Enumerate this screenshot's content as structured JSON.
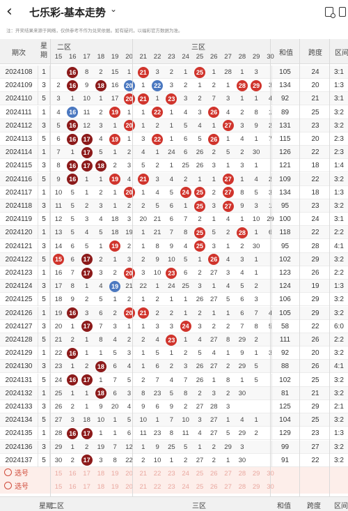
{
  "header": {
    "back_icon": "back-arrow-icon",
    "title": "七乐彩-基本走势",
    "title_chevron": "chevron-down-icon",
    "share_icon": "share-icon",
    "menu_icon": "menu-icon"
  },
  "notice": "注：开奖结果来源于网络，仅供参考不作为兑奖依据。如有疑问，以福彩官方数据为准。",
  "columns": {
    "period": "期次",
    "week": "星期",
    "zone2": "二区",
    "zone3": "三区",
    "sum": "和值",
    "span": "跨度",
    "ratio": "区间"
  },
  "numbers": [
    15,
    16,
    17,
    18,
    19,
    20,
    21,
    22,
    23,
    24,
    25,
    26,
    27,
    28,
    29,
    30
  ],
  "rows": [
    {
      "period": "2024108",
      "week": "1",
      "cells": [
        "",
        "16",
        "8",
        "2",
        "15",
        "1",
        "21",
        "3",
        "2",
        "1",
        "25",
        "1",
        "28",
        "1",
        "3"
      ],
      "sum": "105",
      "span": "24",
      "ratio": "3:1"
    },
    {
      "period": "2024109",
      "week": "3",
      "cells": [
        "2",
        "16",
        "9",
        "18",
        "16",
        "20",
        "1",
        "22",
        "3",
        "2",
        "1",
        "2",
        "1",
        "28",
        "29",
        "3"
      ],
      "sum": "134",
      "span": "20",
      "ratio": "1:3"
    },
    {
      "period": "2024110",
      "week": "5",
      "cells": [
        "3",
        "1",
        "10",
        "1",
        "17",
        "20",
        "21",
        "1",
        "23",
        "3",
        "2",
        "7",
        "3",
        "1",
        "1",
        "4"
      ],
      "sum": "92",
      "span": "21",
      "ratio": "3:1"
    },
    {
      "period": "2024111",
      "week": "1",
      "cells": [
        "4",
        "16",
        "11",
        "2",
        "19",
        "1",
        "1",
        "22",
        "1",
        "4",
        "3",
        "26",
        "4",
        "2",
        "8",
        "1"
      ],
      "sum": "89",
      "span": "25",
      "ratio": "3:2"
    },
    {
      "period": "2024112",
      "week": "3",
      "cells": [
        "5",
        "16",
        "12",
        "3",
        "1",
        "20",
        "1",
        "2",
        "1",
        "5",
        "4",
        "1",
        "27",
        "3",
        "9",
        "2"
      ],
      "sum": "131",
      "span": "23",
      "ratio": "3:2"
    },
    {
      "period": "2024113",
      "week": "5",
      "cells": [
        "6",
        "16",
        "17",
        "4",
        "19",
        "1",
        "3",
        "22",
        "1",
        "6",
        "5",
        "26",
        "1",
        "4",
        "1",
        "7"
      ],
      "sum": "115",
      "span": "20",
      "ratio": "2:3"
    },
    {
      "period": "2024114",
      "week": "1",
      "cells": [
        "7",
        "1",
        "17",
        "5",
        "1",
        "2",
        "4",
        "1",
        "24",
        "6",
        "26",
        "2",
        "5",
        "2",
        "30"
      ],
      "sum": "126",
      "span": "22",
      "ratio": "2:3"
    },
    {
      "period": "2024115",
      "week": "3",
      "cells": [
        "8",
        "16",
        "17",
        "18",
        "2",
        "3",
        "5",
        "2",
        "1",
        "25",
        "26",
        "3",
        "1",
        "3",
        "1"
      ],
      "sum": "121",
      "span": "18",
      "ratio": "1:4"
    },
    {
      "period": "2024116",
      "week": "5",
      "cells": [
        "9",
        "16",
        "1",
        "1",
        "19",
        "4",
        "21",
        "3",
        "4",
        "2",
        "1",
        "1",
        "27",
        "1",
        "4",
        "2"
      ],
      "sum": "109",
      "span": "22",
      "ratio": "3:2"
    },
    {
      "period": "2024117",
      "week": "1",
      "cells": [
        "10",
        "5",
        "1",
        "2",
        "1",
        "20",
        "1",
        "4",
        "5",
        "24",
        "25",
        "2",
        "27",
        "8",
        "5",
        "3"
      ],
      "sum": "134",
      "span": "18",
      "ratio": "1:3"
    },
    {
      "period": "2024118",
      "week": "3",
      "cells": [
        "11",
        "5",
        "2",
        "3",
        "1",
        "2",
        "2",
        "5",
        "6",
        "1",
        "25",
        "3",
        "27",
        "9",
        "3",
        "1"
      ],
      "sum": "95",
      "span": "23",
      "ratio": "3:2"
    },
    {
      "period": "2024119",
      "week": "5",
      "cells": [
        "12",
        "5",
        "3",
        "4",
        "18",
        "3",
        "20",
        "21",
        "6",
        "7",
        "2",
        "1",
        "4",
        "1",
        "10",
        "29",
        "5"
      ],
      "sum": "100",
      "span": "24",
      "ratio": "3:1"
    },
    {
      "period": "2024120",
      "week": "1",
      "cells": [
        "13",
        "5",
        "4",
        "5",
        "18",
        "19",
        "1",
        "21",
        "7",
        "8",
        "25",
        "5",
        "2",
        "28",
        "1",
        "6"
      ],
      "sum": "118",
      "span": "22",
      "ratio": "2:2"
    },
    {
      "period": "2024121",
      "week": "3",
      "cells": [
        "14",
        "6",
        "5",
        "1",
        "19",
        "2",
        "1",
        "8",
        "9",
        "4",
        "25",
        "3",
        "1",
        "2",
        "30"
      ],
      "sum": "95",
      "span": "28",
      "ratio": "4:1"
    },
    {
      "period": "2024122",
      "week": "5",
      "cells": [
        "15",
        "6",
        "17",
        "2",
        "1",
        "3",
        "2",
        "9",
        "10",
        "5",
        "1",
        "26",
        "4",
        "3",
        "1"
      ],
      "sum": "102",
      "span": "29",
      "ratio": "3:2"
    },
    {
      "period": "2024123",
      "week": "1",
      "cells": [
        "16",
        "7",
        "17",
        "3",
        "2",
        "20",
        "3",
        "10",
        "23",
        "6",
        "2",
        "27",
        "3",
        "4",
        "1"
      ],
      "sum": "123",
      "span": "26",
      "ratio": "2:2"
    },
    {
      "period": "2024124",
      "week": "3",
      "cells": [
        "17",
        "8",
        "1",
        "4",
        "19",
        "21",
        "22",
        "1",
        "24",
        "25",
        "3",
        "1",
        "4",
        "5",
        "2"
      ],
      "sum": "124",
      "span": "19",
      "ratio": "1:3"
    },
    {
      "period": "2024125",
      "week": "5",
      "cells": [
        "18",
        "9",
        "2",
        "5",
        "1",
        "2",
        "1",
        "2",
        "1",
        "1",
        "26",
        "27",
        "5",
        "6",
        "3"
      ],
      "sum": "106",
      "span": "29",
      "ratio": "3:2"
    },
    {
      "period": "2024126",
      "week": "1",
      "cells": [
        "19",
        "16",
        "3",
        "6",
        "2",
        "20",
        "21",
        "2",
        "2",
        "1",
        "2",
        "1",
        "1",
        "6",
        "7",
        "4"
      ],
      "sum": "105",
      "span": "29",
      "ratio": "3:2"
    },
    {
      "period": "2024127",
      "week": "3",
      "cells": [
        "20",
        "1",
        "17",
        "7",
        "3",
        "1",
        "1",
        "3",
        "3",
        "24",
        "3",
        "2",
        "2",
        "7",
        "8",
        "5"
      ],
      "sum": "58",
      "span": "22",
      "ratio": "6:0"
    },
    {
      "period": "2024128",
      "week": "5",
      "cells": [
        "21",
        "2",
        "1",
        "8",
        "4",
        "2",
        "2",
        "4",
        "23",
        "1",
        "4",
        "27",
        "8",
        "29",
        "2"
      ],
      "sum": "111",
      "span": "26",
      "ratio": "2:2"
    },
    {
      "period": "2024129",
      "week": "1",
      "cells": [
        "22",
        "16",
        "1",
        "1",
        "5",
        "3",
        "1",
        "5",
        "1",
        "2",
        "5",
        "4",
        "1",
        "9",
        "1",
        "3"
      ],
      "sum": "92",
      "span": "20",
      "ratio": "3:2"
    },
    {
      "period": "2024130",
      "week": "3",
      "cells": [
        "23",
        "1",
        "2",
        "18",
        "6",
        "4",
        "1",
        "6",
        "2",
        "3",
        "26",
        "27",
        "2",
        "29",
        "5"
      ],
      "sum": "88",
      "span": "26",
      "ratio": "4:1"
    },
    {
      "period": "2024131",
      "week": "5",
      "cells": [
        "24",
        "16",
        "17",
        "1",
        "7",
        "5",
        "2",
        "7",
        "4",
        "7",
        "26",
        "1",
        "8",
        "1",
        "5"
      ],
      "sum": "102",
      "span": "25",
      "ratio": "3:2"
    },
    {
      "period": "2024132",
      "week": "1",
      "cells": [
        "25",
        "1",
        "1",
        "18",
        "6",
        "3",
        "8",
        "23",
        "5",
        "8",
        "2",
        "3",
        "2",
        "30"
      ],
      "sum": "81",
      "span": "21",
      "ratio": "3:2"
    },
    {
      "period": "2024133",
      "week": "3",
      "cells": [
        "26",
        "2",
        "1",
        "9",
        "20",
        "4",
        "9",
        "6",
        "9",
        "2",
        "27",
        "28",
        "3"
      ],
      "sum": "125",
      "span": "29",
      "ratio": "2:1"
    },
    {
      "period": "2024134",
      "week": "5",
      "cells": [
        "27",
        "3",
        "18",
        "10",
        "1",
        "5",
        "10",
        "1",
        "7",
        "10",
        "3",
        "27",
        "1",
        "4",
        "1"
      ],
      "sum": "104",
      "span": "25",
      "ratio": "3:2"
    },
    {
      "period": "2024135",
      "week": "1",
      "cells": [
        "28",
        "16",
        "17",
        "1",
        "1",
        "6",
        "11",
        "23",
        "8",
        "11",
        "4",
        "27",
        "5",
        "29",
        "2"
      ],
      "sum": "129",
      "span": "23",
      "ratio": "1:3"
    },
    {
      "period": "2024136",
      "week": "3",
      "cells": [
        "29",
        "1",
        "2",
        "19",
        "7",
        "12",
        "1",
        "9",
        "25",
        "5",
        "1",
        "2",
        "29",
        "3"
      ],
      "sum": "99",
      "span": "27",
      "ratio": "3:2"
    },
    {
      "period": "2024137",
      "week": "5",
      "cells": [
        "30",
        "2",
        "17",
        "3",
        "8",
        "22",
        "2",
        "10",
        "1",
        "2",
        "27",
        "2",
        "1",
        "30"
      ],
      "sum": "91",
      "span": "22",
      "ratio": "3:2"
    }
  ],
  "select_rows": [
    {
      "label": "选号"
    },
    {
      "label": "选号"
    }
  ],
  "footer": {
    "week": "星期",
    "zone2": "二区",
    "zone3": "三区",
    "sum": "和值",
    "span": "跨度",
    "ratio": "区间"
  },
  "colors": {
    "red": "#d0342c",
    "darkred": "#8c1a1a",
    "blue": "#4b78c0",
    "purple": "#7b3bbf"
  }
}
